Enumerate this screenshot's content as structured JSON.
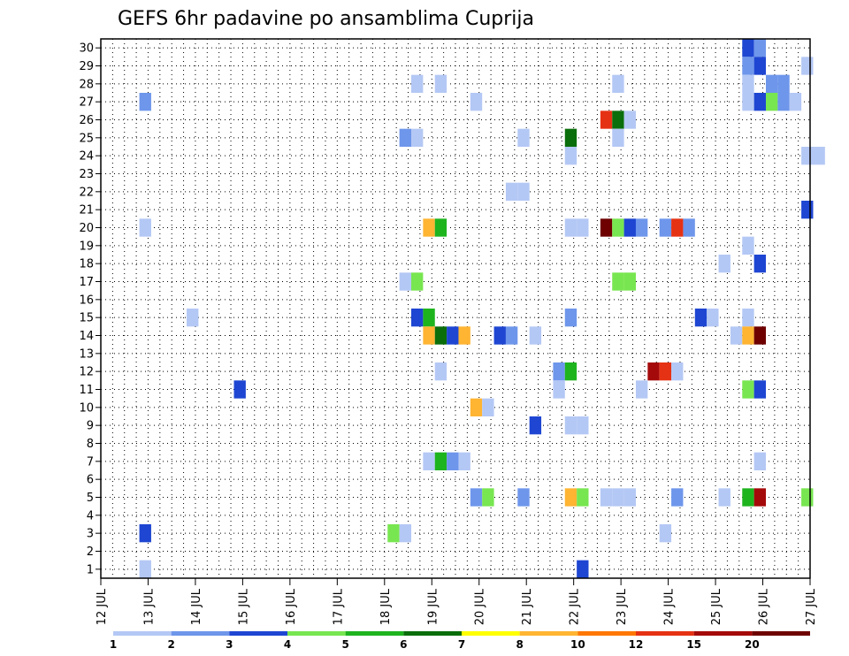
{
  "chart_data": {
    "type": "heatmap",
    "title": "GEFS 6hr padavine po ansamblima Cuprija",
    "y_ticks": [
      "1",
      "2",
      "3",
      "4",
      "5",
      "6",
      "7",
      "8",
      "9",
      "10",
      "11",
      "12",
      "13",
      "14",
      "15",
      "16",
      "17",
      "18",
      "19",
      "20",
      "21",
      "22",
      "23",
      "24",
      "25",
      "26",
      "27",
      "28",
      "29",
      "30"
    ],
    "x_ticks": [
      "12 JUL",
      "13 JUL",
      "14 JUL",
      "15 JUL",
      "16 JUL",
      "17 JUL",
      "18 JUL",
      "19 JUL",
      "20 JUL",
      "21 JUL",
      "22 JUL",
      "23 JUL",
      "24 JUL",
      "25 JUL",
      "26 JUL",
      "27 JUL"
    ],
    "xlim": [
      0,
      15
    ],
    "ylim": [
      0.5,
      30.5
    ],
    "legend": {
      "bins": [
        {
          "color": "#b4c8f5"
        },
        {
          "color": "#6e96eb"
        },
        {
          "color": "#1e46d2"
        },
        {
          "color": "#78e650"
        },
        {
          "color": "#1eb41e"
        },
        {
          "color": "#0a6e0a"
        },
        {
          "color": "#ffff00"
        },
        {
          "color": "#ffb432"
        },
        {
          "color": "#ff7800"
        },
        {
          "color": "#e63214"
        },
        {
          "color": "#a50a0a"
        },
        {
          "color": "#6e0000"
        }
      ],
      "labels": [
        {
          "text": "1",
          "at": 0
        },
        {
          "text": "2",
          "at": 1
        },
        {
          "text": "3",
          "at": 2
        },
        {
          "text": "4",
          "at": 3
        },
        {
          "text": "5",
          "at": 4
        },
        {
          "text": "6",
          "at": 5
        },
        {
          "text": "7",
          "at": 6
        },
        {
          "text": "8",
          "at": 7
        },
        {
          "text": "10",
          "at": 8
        },
        {
          "text": "12",
          "at": 9
        },
        {
          "text": "15",
          "at": 10
        },
        {
          "text": "20",
          "at": 11
        }
      ]
    },
    "cells": [
      {
        "x": 13.69,
        "y": 30,
        "c": 2
      },
      {
        "x": 13.94,
        "y": 30,
        "c": 1
      },
      {
        "x": 13.69,
        "y": 29,
        "c": 1
      },
      {
        "x": 13.94,
        "y": 29,
        "c": 2
      },
      {
        "x": 14.94,
        "y": 29,
        "c": 0
      },
      {
        "x": 6.69,
        "y": 28,
        "c": 0
      },
      {
        "x": 7.19,
        "y": 28,
        "c": 0
      },
      {
        "x": 10.94,
        "y": 28,
        "c": 0
      },
      {
        "x": 13.69,
        "y": 28,
        "c": 0
      },
      {
        "x": 14.19,
        "y": 28,
        "c": 1
      },
      {
        "x": 14.44,
        "y": 28,
        "c": 1
      },
      {
        "x": 0.94,
        "y": 27,
        "c": 1
      },
      {
        "x": 7.94,
        "y": 27,
        "c": 0
      },
      {
        "x": 13.69,
        "y": 27,
        "c": 0
      },
      {
        "x": 13.94,
        "y": 27,
        "c": 2
      },
      {
        "x": 14.19,
        "y": 27,
        "c": 3
      },
      {
        "x": 14.44,
        "y": 27,
        "c": 1
      },
      {
        "x": 14.69,
        "y": 27,
        "c": 0
      },
      {
        "x": 10.69,
        "y": 26,
        "c": 9
      },
      {
        "x": 10.94,
        "y": 26,
        "c": 5
      },
      {
        "x": 11.19,
        "y": 26,
        "c": 0
      },
      {
        "x": 6.44,
        "y": 25,
        "c": 1
      },
      {
        "x": 6.69,
        "y": 25,
        "c": 0
      },
      {
        "x": 8.94,
        "y": 25,
        "c": 0
      },
      {
        "x": 9.94,
        "y": 25,
        "c": 5
      },
      {
        "x": 10.94,
        "y": 25,
        "c": 0
      },
      {
        "x": 9.94,
        "y": 24,
        "c": 0
      },
      {
        "x": 14.94,
        "y": 24,
        "c": 0
      },
      {
        "x": 15.19,
        "y": 24,
        "c": 0
      },
      {
        "x": 8.69,
        "y": 22,
        "c": 0
      },
      {
        "x": 8.94,
        "y": 22,
        "c": 0
      },
      {
        "x": 14.94,
        "y": 21,
        "c": 2
      },
      {
        "x": 0.94,
        "y": 20,
        "c": 0
      },
      {
        "x": 6.94,
        "y": 20,
        "c": 7
      },
      {
        "x": 7.19,
        "y": 20,
        "c": 4
      },
      {
        "x": 9.94,
        "y": 20,
        "c": 0
      },
      {
        "x": 10.19,
        "y": 20,
        "c": 0
      },
      {
        "x": 10.69,
        "y": 20,
        "c": 11
      },
      {
        "x": 10.94,
        "y": 20,
        "c": 3
      },
      {
        "x": 11.19,
        "y": 20,
        "c": 2
      },
      {
        "x": 11.44,
        "y": 20,
        "c": 1
      },
      {
        "x": 11.94,
        "y": 20,
        "c": 1
      },
      {
        "x": 12.19,
        "y": 20,
        "c": 9
      },
      {
        "x": 12.44,
        "y": 20,
        "c": 1
      },
      {
        "x": 13.69,
        "y": 19,
        "c": 0
      },
      {
        "x": 13.19,
        "y": 18,
        "c": 0
      },
      {
        "x": 13.94,
        "y": 18,
        "c": 2
      },
      {
        "x": 6.44,
        "y": 17,
        "c": 0
      },
      {
        "x": 6.69,
        "y": 17,
        "c": 3
      },
      {
        "x": 10.94,
        "y": 17,
        "c": 3
      },
      {
        "x": 11.19,
        "y": 17,
        "c": 3
      },
      {
        "x": 1.94,
        "y": 15,
        "c": 0
      },
      {
        "x": 6.69,
        "y": 15,
        "c": 2
      },
      {
        "x": 6.94,
        "y": 15,
        "c": 4
      },
      {
        "x": 9.94,
        "y": 15,
        "c": 1
      },
      {
        "x": 12.69,
        "y": 15,
        "c": 2
      },
      {
        "x": 12.94,
        "y": 15,
        "c": 0
      },
      {
        "x": 13.69,
        "y": 15,
        "c": 0
      },
      {
        "x": 6.94,
        "y": 14,
        "c": 7
      },
      {
        "x": 7.19,
        "y": 14,
        "c": 5
      },
      {
        "x": 7.44,
        "y": 14,
        "c": 2
      },
      {
        "x": 7.69,
        "y": 14,
        "c": 7
      },
      {
        "x": 8.44,
        "y": 14,
        "c": 2
      },
      {
        "x": 8.69,
        "y": 14,
        "c": 1
      },
      {
        "x": 9.19,
        "y": 14,
        "c": 0
      },
      {
        "x": 13.44,
        "y": 14,
        "c": 0
      },
      {
        "x": 13.69,
        "y": 14,
        "c": 7
      },
      {
        "x": 13.94,
        "y": 14,
        "c": 11
      },
      {
        "x": 7.19,
        "y": 12,
        "c": 0
      },
      {
        "x": 9.69,
        "y": 12,
        "c": 1
      },
      {
        "x": 9.94,
        "y": 12,
        "c": 4
      },
      {
        "x": 11.69,
        "y": 12,
        "c": 10
      },
      {
        "x": 11.94,
        "y": 12,
        "c": 9
      },
      {
        "x": 12.19,
        "y": 12,
        "c": 0
      },
      {
        "x": 2.94,
        "y": 11,
        "c": 2
      },
      {
        "x": 9.69,
        "y": 11,
        "c": 0
      },
      {
        "x": 11.44,
        "y": 11,
        "c": 0
      },
      {
        "x": 13.69,
        "y": 11,
        "c": 3
      },
      {
        "x": 13.94,
        "y": 11,
        "c": 2
      },
      {
        "x": 7.94,
        "y": 10,
        "c": 7
      },
      {
        "x": 8.19,
        "y": 10,
        "c": 0
      },
      {
        "x": 9.19,
        "y": 9,
        "c": 2
      },
      {
        "x": 9.94,
        "y": 9,
        "c": 0
      },
      {
        "x": 10.19,
        "y": 9,
        "c": 0
      },
      {
        "x": 6.94,
        "y": 7,
        "c": 0
      },
      {
        "x": 7.19,
        "y": 7,
        "c": 4
      },
      {
        "x": 7.44,
        "y": 7,
        "c": 1
      },
      {
        "x": 7.69,
        "y": 7,
        "c": 0
      },
      {
        "x": 13.94,
        "y": 7,
        "c": 0
      },
      {
        "x": 7.94,
        "y": 5,
        "c": 1
      },
      {
        "x": 8.19,
        "y": 5,
        "c": 3
      },
      {
        "x": 8.94,
        "y": 5,
        "c": 1
      },
      {
        "x": 9.94,
        "y": 5,
        "c": 7
      },
      {
        "x": 10.19,
        "y": 5,
        "c": 3
      },
      {
        "x": 10.69,
        "y": 5,
        "c": 0
      },
      {
        "x": 10.94,
        "y": 5,
        "c": 0
      },
      {
        "x": 11.19,
        "y": 5,
        "c": 0
      },
      {
        "x": 12.19,
        "y": 5,
        "c": 1
      },
      {
        "x": 13.19,
        "y": 5,
        "c": 0
      },
      {
        "x": 13.69,
        "y": 5,
        "c": 4
      },
      {
        "x": 13.94,
        "y": 5,
        "c": 10
      },
      {
        "x": 14.94,
        "y": 5,
        "c": 3
      },
      {
        "x": 0.94,
        "y": 3,
        "c": 2
      },
      {
        "x": 6.19,
        "y": 3,
        "c": 3
      },
      {
        "x": 6.44,
        "y": 3,
        "c": 0
      },
      {
        "x": 11.94,
        "y": 3,
        "c": 0
      },
      {
        "x": 0.94,
        "y": 1,
        "c": 0
      },
      {
        "x": 10.19,
        "y": 1,
        "c": 2
      }
    ]
  }
}
